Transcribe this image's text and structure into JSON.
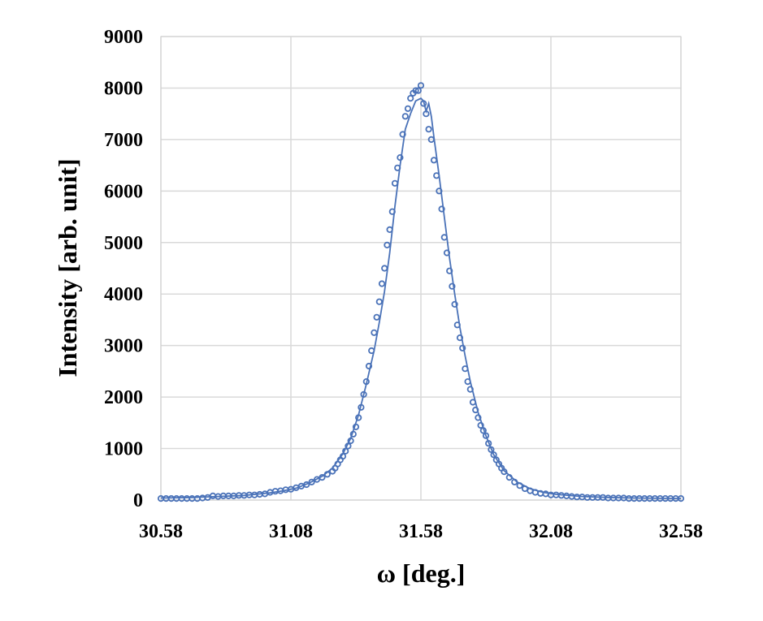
{
  "chart_data": {
    "type": "scatter",
    "title": "",
    "xlabel": "ω [deg.]",
    "ylabel": "Intensity [arb. unit]",
    "xlim": [
      30.58,
      32.58
    ],
    "ylim": [
      0,
      9000
    ],
    "xticks": [
      "30.58",
      "31.08",
      "31.58",
      "32.08",
      "32.58"
    ],
    "yticks": [
      "0",
      "1000",
      "2000",
      "3000",
      "4000",
      "5000",
      "6000",
      "7000",
      "8000",
      "9000"
    ],
    "grid": true,
    "legend": "none",
    "series": [
      {
        "style": "markers",
        "marker": "open-circle",
        "color": "#4a72b8",
        "x": [
          30.58,
          30.6,
          30.62,
          30.64,
          30.66,
          30.68,
          30.7,
          30.72,
          30.74,
          30.76,
          30.78,
          30.8,
          30.82,
          30.84,
          30.86,
          30.88,
          30.9,
          30.92,
          30.94,
          30.96,
          30.98,
          31.0,
          31.02,
          31.04,
          31.06,
          31.08,
          31.1,
          31.12,
          31.14,
          31.16,
          31.18,
          31.2,
          31.22,
          31.24,
          31.25,
          31.26,
          31.27,
          31.28,
          31.29,
          31.3,
          31.31,
          31.32,
          31.33,
          31.34,
          31.35,
          31.36,
          31.37,
          31.38,
          31.39,
          31.4,
          31.41,
          31.42,
          31.43,
          31.44,
          31.45,
          31.46,
          31.47,
          31.48,
          31.49,
          31.5,
          31.51,
          31.52,
          31.53,
          31.54,
          31.55,
          31.56,
          31.57,
          31.58,
          31.59,
          31.6,
          31.61,
          31.62,
          31.63,
          31.64,
          31.65,
          31.66,
          31.67,
          31.68,
          31.69,
          31.7,
          31.71,
          31.72,
          31.73,
          31.74,
          31.75,
          31.76,
          31.77,
          31.78,
          31.79,
          31.8,
          31.81,
          31.82,
          31.83,
          31.84,
          31.85,
          31.86,
          31.87,
          31.88,
          31.89,
          31.9,
          31.92,
          31.94,
          31.96,
          31.98,
          32.0,
          32.02,
          32.04,
          32.06,
          32.08,
          32.1,
          32.12,
          32.14,
          32.16,
          32.18,
          32.2,
          32.22,
          32.24,
          32.26,
          32.28,
          32.3,
          32.32,
          32.34,
          32.36,
          32.38,
          32.4,
          32.42,
          32.44,
          32.46,
          32.48,
          32.5,
          32.52,
          32.54,
          32.56,
          32.58
        ],
        "y": [
          30,
          30,
          30,
          30,
          30,
          30,
          30,
          30,
          40,
          50,
          80,
          70,
          80,
          80,
          80,
          90,
          90,
          100,
          100,
          110,
          120,
          150,
          170,
          180,
          200,
          210,
          240,
          270,
          300,
          350,
          400,
          440,
          500,
          560,
          620,
          700,
          780,
          850,
          950,
          1050,
          1150,
          1280,
          1420,
          1600,
          1800,
          2050,
          2300,
          2600,
          2900,
          3250,
          3550,
          3850,
          4200,
          4500,
          4950,
          5250,
          5600,
          6150,
          6450,
          6650,
          7100,
          7450,
          7600,
          7800,
          7900,
          7950,
          7950,
          8050,
          7700,
          7500,
          7200,
          7000,
          6600,
          6300,
          6000,
          5650,
          5100,
          4800,
          4450,
          4150,
          3800,
          3400,
          3150,
          2950,
          2550,
          2300,
          2150,
          1900,
          1750,
          1600,
          1450,
          1350,
          1250,
          1100,
          980,
          880,
          780,
          700,
          620,
          550,
          440,
          350,
          280,
          220,
          180,
          150,
          130,
          120,
          100,
          100,
          90,
          80,
          70,
          60,
          60,
          50,
          50,
          50,
          50,
          40,
          40,
          40,
          40,
          30,
          30,
          30,
          30,
          30,
          30,
          30,
          30,
          30,
          30,
          30
        ]
      },
      {
        "style": "line",
        "color": "#4a72b8",
        "x": [
          30.58,
          30.7,
          30.8,
          30.9,
          31.0,
          31.05,
          31.1,
          31.15,
          31.2,
          31.24,
          31.28,
          31.31,
          31.34,
          31.37,
          31.4,
          31.42,
          31.44,
          31.46,
          31.48,
          31.5,
          31.52,
          31.54,
          31.56,
          31.58,
          31.59,
          31.6,
          31.61,
          31.62,
          31.63,
          31.65,
          31.67,
          31.69,
          31.71,
          31.73,
          31.75,
          31.77,
          31.8,
          31.83,
          31.86,
          31.9,
          31.95,
          32.0,
          32.05,
          32.1,
          32.2,
          32.3,
          32.4,
          32.58
        ],
        "y": [
          40,
          50,
          70,
          90,
          140,
          180,
          230,
          330,
          460,
          620,
          900,
          1200,
          1650,
          2250,
          2900,
          3450,
          4050,
          4800,
          5700,
          6500,
          7200,
          7500,
          7750,
          7800,
          7750,
          7550,
          7700,
          7450,
          7050,
          6300,
          5500,
          4700,
          4000,
          3350,
          2800,
          2300,
          1700,
          1250,
          880,
          570,
          350,
          220,
          150,
          110,
          70,
          50,
          40,
          30
        ]
      }
    ]
  }
}
